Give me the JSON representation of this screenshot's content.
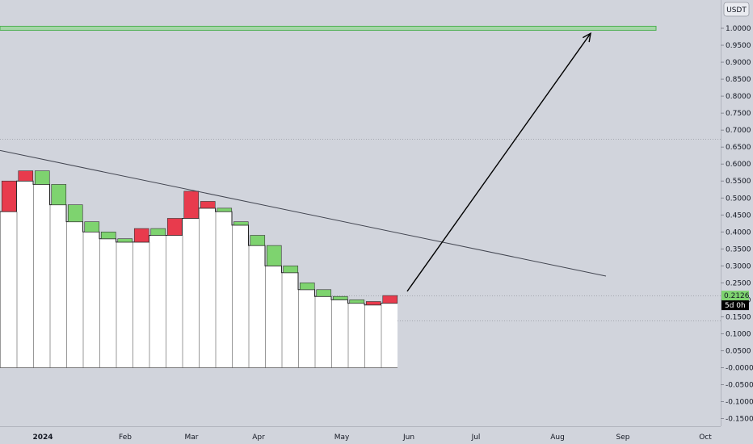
{
  "chart_data": {
    "type": "candlestick",
    "currency": "USDT",
    "y_ticks": [
      "1.0000",
      "0.9500",
      "0.9000",
      "0.8500",
      "0.8000",
      "0.7500",
      "0.7000",
      "0.6500",
      "0.6000",
      "0.5500",
      "0.5000",
      "0.4500",
      "0.4000",
      "0.3500",
      "0.3000",
      "0.2500",
      "0.2000",
      "0.1500",
      "0.1000",
      "0.0500",
      "-0.0000",
      "-0.0500",
      "-0.1000",
      "-0.1500"
    ],
    "x_ticks": [
      "2024",
      "Feb",
      "Mar",
      "Apr",
      "May",
      "Jun",
      "Jul",
      "Aug",
      "Sep",
      "Oct"
    ],
    "ylim": [
      -0.17,
      1.06
    ],
    "price_badge": "0.2126",
    "countdown_badge": "5d 0h",
    "candles": [
      {
        "open": 0.46,
        "close": 0.55
      },
      {
        "open": 0.55,
        "close": 0.58
      },
      {
        "open": 0.58,
        "close": 0.54
      },
      {
        "open": 0.54,
        "close": 0.48
      },
      {
        "open": 0.48,
        "close": 0.43
      },
      {
        "open": 0.43,
        "close": 0.4
      },
      {
        "open": 0.4,
        "close": 0.38
      },
      {
        "open": 0.38,
        "close": 0.37
      },
      {
        "open": 0.37,
        "close": 0.41
      },
      {
        "open": 0.41,
        "close": 0.39
      },
      {
        "open": 0.39,
        "close": 0.44
      },
      {
        "open": 0.44,
        "close": 0.52
      },
      {
        "open": 0.47,
        "close": 0.49
      },
      {
        "open": 0.47,
        "close": 0.46
      },
      {
        "open": 0.43,
        "close": 0.42
      },
      {
        "open": 0.39,
        "close": 0.36
      },
      {
        "open": 0.36,
        "close": 0.3
      },
      {
        "open": 0.3,
        "close": 0.28
      },
      {
        "open": 0.25,
        "close": 0.23
      },
      {
        "open": 0.23,
        "close": 0.21
      },
      {
        "open": 0.21,
        "close": 0.2
      },
      {
        "open": 0.2,
        "close": 0.19
      },
      {
        "open": 0.185,
        "close": 0.195
      },
      {
        "open": 0.19,
        "close": 0.2126
      }
    ],
    "resistance_level": 1.0,
    "dotted_levels": [
      0.675,
      0.213,
      0.14
    ],
    "trendline": {
      "start_price": 0.64,
      "end_price": 0.27
    },
    "arrow": {
      "start_price": 0.225,
      "end_price": 0.985
    }
  }
}
